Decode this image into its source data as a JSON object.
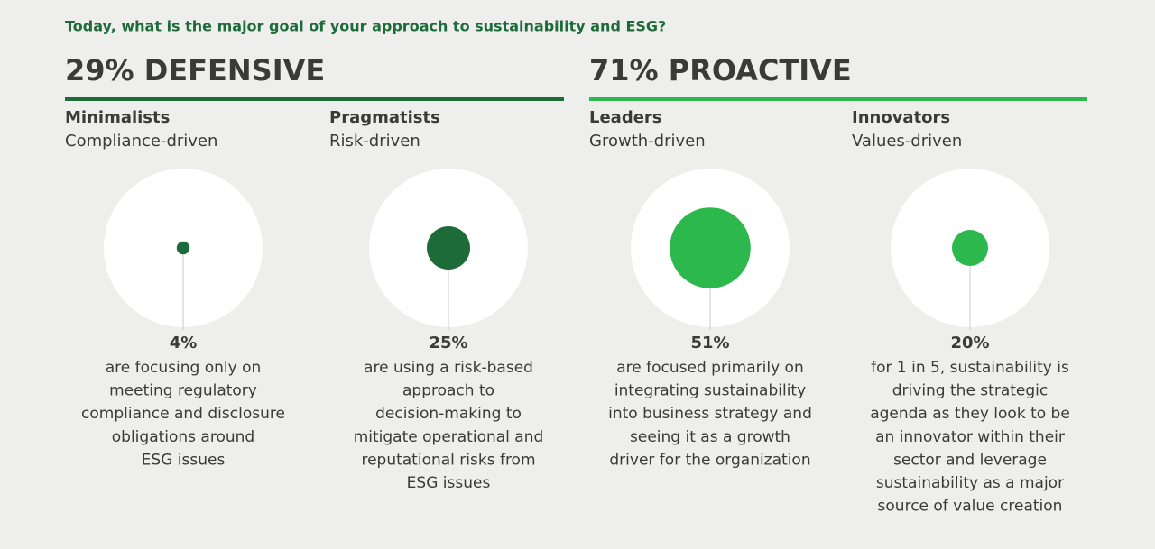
{
  "chart_data": {
    "type": "bubble",
    "title": "Today, what is the major goal of your approach to sustainability and ESG?",
    "groups": [
      {
        "label": "29% DEFENSIVE",
        "color": "#1e6b3a",
        "members": [
          0,
          1
        ]
      },
      {
        "label": "71% PROACTIVE",
        "color": "#2db84d",
        "members": [
          2,
          3
        ]
      }
    ],
    "categories": [
      "Minimalists",
      "Pragmatists",
      "Leaders",
      "Innovators"
    ],
    "subtitles": [
      "Compliance-driven",
      "Risk-driven",
      "Growth-driven",
      "Values-driven"
    ],
    "values": [
      4,
      25,
      51,
      20
    ],
    "value_labels": [
      "4%",
      "25%",
      "51%",
      "20%"
    ],
    "colors": [
      "#1e6b3a",
      "#1e6b3a",
      "#2db84d",
      "#2db84d"
    ],
    "descriptions": [
      [
        "are focusing only on",
        "meeting regulatory",
        "compliance and disclosure",
        "obligations around",
        "ESG issues"
      ],
      [
        "are using a risk-based",
        "approach to",
        "decision-making to",
        "mitigate operational and",
        "reputational risks from",
        "ESG issues"
      ],
      [
        "are focused primarily on",
        "integrating sustainability",
        "into business strategy and",
        "seeing it as a growth",
        "driver for the organization"
      ],
      [
        "for 1 in 5, sustainability is",
        "driving the strategic",
        "agenda as they look to be",
        "an innovator within their",
        "sector and leverage",
        "sustainability as a major",
        "source of value creation"
      ]
    ]
  }
}
